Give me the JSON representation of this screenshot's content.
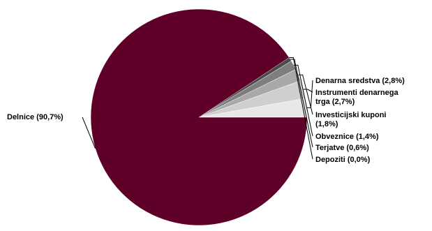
{
  "chart_data": {
    "type": "pie",
    "title": "",
    "slices": [
      {
        "label_lines": [
          "Denarna sredstva (2,8%)"
        ],
        "value": 2.8,
        "color": "#e8e8e8"
      },
      {
        "label_lines": [
          "Instrumenti denarnega",
          "trga (2,7%)"
        ],
        "value": 2.7,
        "color": "#cfcfcf"
      },
      {
        "label_lines": [
          "Investicijski kuponi",
          "(1,8%)"
        ],
        "value": 1.8,
        "color": "#a9a9a9"
      },
      {
        "label_lines": [
          "Obveznice (1,4%)"
        ],
        "value": 1.4,
        "color": "#7e7e7e"
      },
      {
        "label_lines": [
          "Terjatve (0,6%)"
        ],
        "value": 0.6,
        "color": "#4a4a4a"
      },
      {
        "label_lines": [
          "Depoziti (0,0%)"
        ],
        "value": 0.0,
        "color": "#2e2e2e"
      },
      {
        "label_lines": [
          "Delnice (90,7%)"
        ],
        "value": 90.7,
        "color": "#5e0028"
      }
    ],
    "start": "east",
    "direction": "counterclockwise",
    "legend": "none",
    "labels": "outside with leader lines"
  }
}
